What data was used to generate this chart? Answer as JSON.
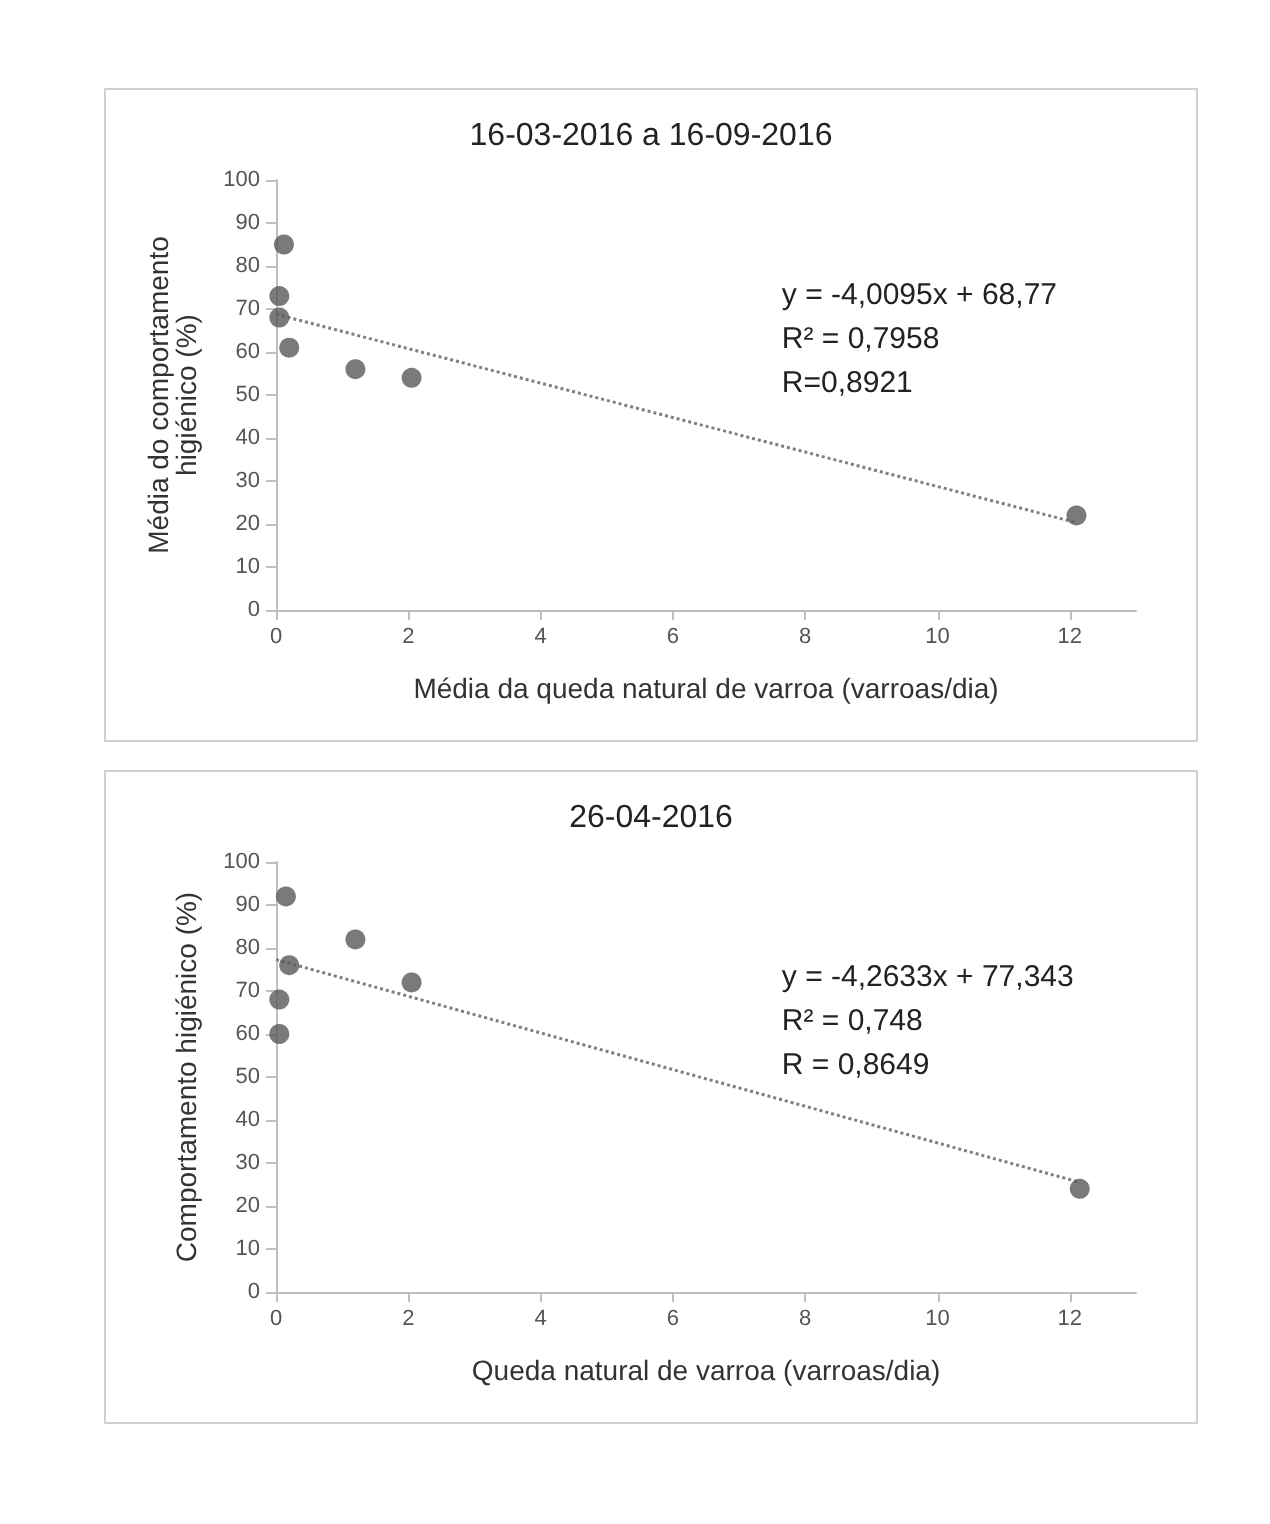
{
  "chart_data": [
    {
      "type": "scatter",
      "title": "16-03-2016 a 16-09-2016",
      "xlabel": "Média da queda natural de varroa (varroas/dia)",
      "ylabel": "Média do comportamento\nhigiénico (%)",
      "series": [
        {
          "type": "scatter",
          "color": "#595959",
          "x": [
            0.05,
            0.05,
            0.12,
            0.2,
            1.2,
            2.05,
            12.1
          ],
          "values": [
            73,
            68,
            85,
            61,
            56,
            54,
            22
          ]
        },
        {
          "type": "line",
          "color": "#7f7f7f",
          "line_style": "dotted",
          "marker": "none",
          "x": [
            0,
            12.1
          ],
          "values": [
            68.8,
            20.3
          ]
        }
      ],
      "xlim": [
        0,
        13
      ],
      "xticks": [
        0,
        2,
        4,
        6,
        8,
        10,
        12
      ],
      "ylim": [
        0,
        100
      ],
      "yticks": [
        0,
        10,
        20,
        30,
        40,
        50,
        60,
        70,
        80,
        90,
        100
      ],
      "grid": false,
      "marker": "circle",
      "annotations": [
        "y = -4,0095x + 68,77",
        "R² = 0,7958",
        "R=0,8921"
      ]
    },
    {
      "type": "scatter",
      "title": "26-04-2016",
      "xlabel": "Queda natural de varroa (varroas/dia)",
      "ylabel": "Comportamento higiénico (%)",
      "series": [
        {
          "type": "scatter",
          "color": "#595959",
          "x": [
            0.05,
            0.05,
            0.15,
            0.2,
            1.2,
            2.05,
            12.15
          ],
          "values": [
            68,
            60,
            92,
            76,
            82,
            72,
            24
          ]
        },
        {
          "type": "line",
          "color": "#7f7f7f",
          "line_style": "dotted",
          "marker": "none",
          "x": [
            0,
            12.15
          ],
          "values": [
            77.3,
            25.5
          ]
        }
      ],
      "xlim": [
        0,
        13
      ],
      "xticks": [
        0,
        2,
        4,
        6,
        8,
        10,
        12
      ],
      "ylim": [
        0,
        100
      ],
      "yticks": [
        0,
        10,
        20,
        30,
        40,
        50,
        60,
        70,
        80,
        90,
        100
      ],
      "grid": false,
      "marker": "circle",
      "annotations": [
        "y = -4,2633x + 77,343",
        "R² = 0,748",
        "R = 0,8649"
      ]
    }
  ]
}
